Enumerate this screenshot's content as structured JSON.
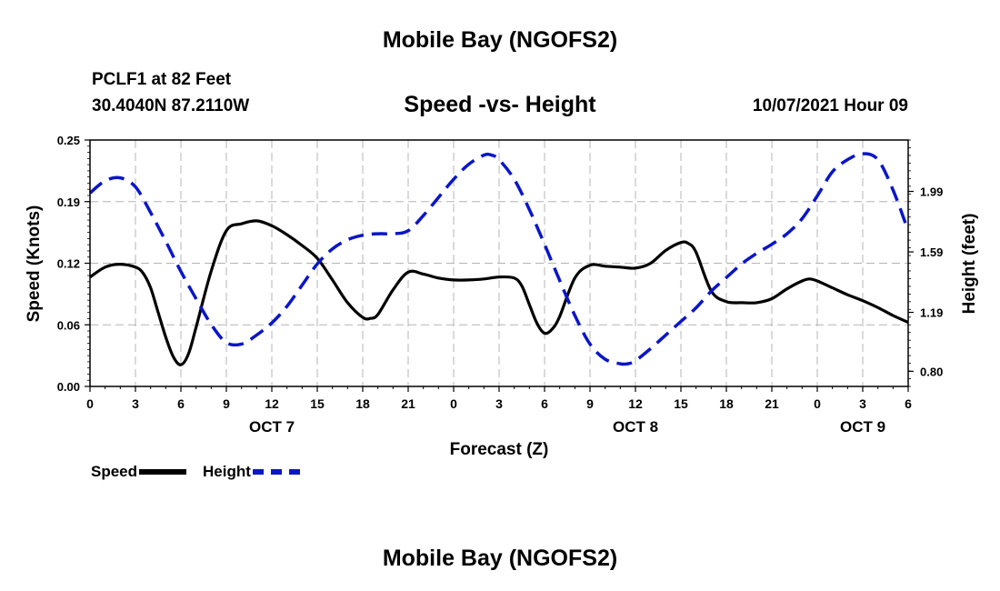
{
  "header": {
    "main_title": "Mobile Bay (NGOFS2)",
    "station": "PCLF1 at 82 Feet",
    "coords": "30.4040N  87.2110W",
    "chart_subtitle": "Speed -vs- Height",
    "valid_time": "10/07/2021 Hour 09"
  },
  "footer": {
    "title": "Mobile Bay (NGOFS2)"
  },
  "legend": {
    "speed_label": "Speed",
    "height_label": "Height"
  },
  "colors": {
    "speed": "#000000",
    "height": "#0a16c8",
    "grid": "#b4b4b4"
  },
  "chart_data": {
    "type": "line",
    "title": "Speed -vs- Height",
    "xlabel": "Forecast (Z)",
    "ylabel": "Speed (Knots)",
    "y2label": "Height (feet)",
    "x_unit": "hours from Oct 7 00Z",
    "xlim": [
      0,
      54
    ],
    "ylim": [
      0,
      0.25
    ],
    "y2lim": [
      0.7,
      2.33
    ],
    "x_tick_values": [
      0,
      3,
      6,
      9,
      12,
      15,
      18,
      21,
      24,
      27,
      30,
      33,
      36,
      39,
      42,
      45,
      48,
      51,
      54
    ],
    "x_tick_labels": [
      "0",
      "3",
      "6",
      "9",
      "12",
      "15",
      "18",
      "21",
      "0",
      "3",
      "6",
      "9",
      "12",
      "15",
      "18",
      "21",
      "0",
      "3",
      "6"
    ],
    "day_labels": [
      {
        "x": 12,
        "label": "OCT 7"
      },
      {
        "x": 36,
        "label": "OCT 8"
      },
      {
        "x": 51,
        "label": "OCT 9"
      }
    ],
    "y_ticks": [
      "0.00",
      "0.06",
      "0.12",
      "0.19",
      "0.25"
    ],
    "y_tick_values": [
      0.0,
      0.0625,
      0.125,
      0.1875,
      0.25
    ],
    "y2_ticks": [
      "0.80",
      "1.19",
      "1.59",
      "1.99"
    ],
    "y2_tick_values": [
      0.8,
      1.19,
      1.59,
      1.99
    ],
    "grid": true,
    "legend_position": "bottom-left",
    "series": [
      {
        "name": "Speed",
        "axis": "left",
        "style": "solid",
        "x": [
          0,
          1,
          2,
          3,
          3.5,
          4,
          4.5,
          5,
          5.5,
          6,
          6.5,
          7,
          8,
          9,
          10,
          11,
          12,
          13,
          14,
          15,
          16,
          17,
          18,
          18.5,
          19,
          20,
          21,
          22,
          23,
          24,
          25,
          26,
          27,
          28,
          28.5,
          29,
          29.5,
          30,
          30.5,
          31,
          32,
          33,
          34,
          35,
          36,
          37,
          38,
          39,
          39.5,
          40,
          41,
          42,
          43,
          44,
          45,
          46,
          47,
          47.5,
          48,
          49,
          50,
          51,
          52,
          53,
          54
        ],
        "y": [
          0.111,
          0.121,
          0.124,
          0.121,
          0.115,
          0.1,
          0.075,
          0.05,
          0.03,
          0.022,
          0.033,
          0.06,
          0.117,
          0.158,
          0.165,
          0.168,
          0.163,
          0.154,
          0.143,
          0.13,
          0.108,
          0.085,
          0.07,
          0.069,
          0.073,
          0.098,
          0.116,
          0.114,
          0.11,
          0.108,
          0.108,
          0.109,
          0.111,
          0.11,
          0.102,
          0.083,
          0.064,
          0.054,
          0.058,
          0.071,
          0.11,
          0.123,
          0.122,
          0.121,
          0.12,
          0.125,
          0.138,
          0.146,
          0.145,
          0.136,
          0.097,
          0.086,
          0.085,
          0.085,
          0.089,
          0.099,
          0.107,
          0.109,
          0.107,
          0.1,
          0.093,
          0.087,
          0.08,
          0.072,
          0.065
        ]
      },
      {
        "name": "Height",
        "axis": "right",
        "style": "dashed",
        "x": [
          0,
          1,
          2,
          3,
          4,
          5,
          6,
          7,
          8,
          9,
          10,
          11,
          12,
          13,
          14,
          15,
          16,
          17,
          18,
          19,
          20,
          21,
          22,
          23,
          24,
          25,
          26,
          26.5,
          27,
          28,
          29,
          30,
          31,
          32,
          33,
          34,
          35,
          35.5,
          36,
          37,
          38,
          39,
          40,
          41,
          42,
          43,
          44,
          45,
          46,
          47,
          48,
          49,
          50,
          51,
          52,
          53,
          54
        ],
        "y": [
          1.98,
          2.06,
          2.08,
          2.02,
          1.85,
          1.66,
          1.46,
          1.28,
          1.11,
          0.99,
          0.98,
          1.04,
          1.12,
          1.23,
          1.37,
          1.51,
          1.61,
          1.67,
          1.7,
          1.71,
          1.71,
          1.73,
          1.83,
          1.95,
          2.07,
          2.17,
          2.23,
          2.23,
          2.2,
          2.07,
          1.87,
          1.64,
          1.4,
          1.17,
          0.98,
          0.88,
          0.85,
          0.85,
          0.87,
          0.95,
          1.04,
          1.13,
          1.22,
          1.33,
          1.42,
          1.51,
          1.58,
          1.64,
          1.71,
          1.81,
          1.96,
          2.12,
          2.2,
          2.24,
          2.2,
          2.0,
          1.73
        ]
      }
    ]
  }
}
